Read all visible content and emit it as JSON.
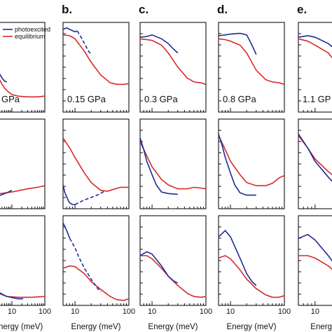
{
  "chart_data": {
    "type": "line",
    "x_scale": "log",
    "xlim": [
      6,
      100
    ],
    "grid": false,
    "legend": {
      "placement": "top-right of first panel",
      "entries": [
        {
          "label": "photoexcited",
          "color": "#1f2a9a"
        },
        {
          "label": "equilibrium",
          "color": "#d42a2a"
        }
      ]
    },
    "xlabel": "Energy (meV)",
    "x_ticks": [
      "10",
      "100"
    ],
    "colors": {
      "photoexcited": "#1f2a9a",
      "equilibrium": "#d42a2a"
    },
    "columns": [
      {
        "letter": "",
        "pressure": "GPa",
        "xlabel": "nergy (meV)"
      },
      {
        "letter": "b.",
        "pressure": "0.15 GPa",
        "xlabel": "Energy (meV)"
      },
      {
        "letter": "c.",
        "pressure": "0.3 GPa",
        "xlabel": "Energy (meV)"
      },
      {
        "letter": "d.",
        "pressure": "0.8 GPa",
        "xlabel": "Energy (meV)"
      },
      {
        "letter": "e.",
        "pressure": "1.1 GP",
        "xlabel": "Energy (me"
      }
    ],
    "panels": [
      {
        "col": 0,
        "row": 0,
        "xlim": [
          1,
          100
        ],
        "equilibrium": [
          [
            1,
            0.88
          ],
          [
            1.6,
            0.82
          ],
          [
            2.2,
            0.68
          ],
          [
            3,
            0.5
          ],
          [
            4,
            0.38
          ],
          [
            5,
            0.3
          ],
          [
            6,
            0.25
          ],
          [
            8,
            0.2
          ],
          [
            10,
            0.17
          ],
          [
            15,
            0.15
          ],
          [
            30,
            0.14
          ],
          [
            60,
            0.14
          ],
          [
            100,
            0.15
          ]
        ],
        "photoexcited": [
          [
            1,
            0.97
          ],
          [
            1.6,
            0.9
          ],
          [
            2.2,
            0.75
          ],
          [
            3,
            0.58
          ],
          [
            4,
            0.45
          ],
          [
            5,
            0.38
          ],
          [
            6,
            0.34
          ],
          [
            7,
            0.33
          ]
        ]
      },
      {
        "col": 0,
        "row": 1,
        "xlim": [
          1,
          100
        ],
        "equilibrium": [
          [
            1,
            0.1
          ],
          [
            3,
            0.13
          ],
          [
            10,
            0.16
          ],
          [
            30,
            0.2
          ],
          [
            60,
            0.22
          ],
          [
            100,
            0.24
          ]
        ],
        "photoexcited": [
          [
            1,
            0.0
          ],
          [
            2,
            0.05
          ],
          [
            4,
            0.11
          ],
          [
            7,
            0.15
          ],
          [
            10,
            0.18
          ]
        ]
      },
      {
        "col": 0,
        "row": 2,
        "xlim": [
          1,
          100
        ],
        "equilibrium": [
          [
            1,
            0.2
          ],
          [
            3,
            0.12
          ],
          [
            7,
            0.06
          ],
          [
            15,
            0.05
          ],
          [
            40,
            0.05
          ],
          [
            100,
            0.06
          ]
        ],
        "photoexcited": [
          [
            1,
            0.24
          ],
          [
            3,
            0.14
          ],
          [
            7,
            0.06
          ],
          [
            15,
            0.03
          ],
          [
            22,
            0.03
          ]
        ]
      },
      {
        "col": 1,
        "row": 0,
        "equilibrium": [
          [
            6,
            0.93
          ],
          [
            8,
            0.92
          ],
          [
            10,
            0.88
          ],
          [
            15,
            0.72
          ],
          [
            20,
            0.58
          ],
          [
            30,
            0.42
          ],
          [
            45,
            0.32
          ],
          [
            60,
            0.3
          ],
          [
            80,
            0.3
          ],
          [
            100,
            0.31
          ]
        ],
        "photoexcited": [
          [
            6,
            1.0
          ],
          [
            7,
            1.02
          ],
          [
            8,
            1.0
          ],
          [
            10,
            0.97
          ],
          [
            11,
            0.98
          ]
        ],
        "photoexcited_dashed": [
          [
            11,
            0.98
          ],
          [
            13,
            0.9
          ],
          [
            15,
            0.82
          ],
          [
            18,
            0.72
          ],
          [
            20,
            0.68
          ]
        ]
      },
      {
        "col": 1,
        "row": 1,
        "equilibrium": [
          [
            6,
            0.85
          ],
          [
            8,
            0.72
          ],
          [
            10,
            0.6
          ],
          [
            15,
            0.4
          ],
          [
            20,
            0.28
          ],
          [
            30,
            0.18
          ],
          [
            40,
            0.17
          ],
          [
            50,
            0.19
          ],
          [
            70,
            0.22
          ],
          [
            100,
            0.22
          ]
        ],
        "photoexcited": [
          [
            6,
            0.25
          ],
          [
            6.5,
            0.15
          ],
          [
            7,
            0.1
          ],
          [
            7.5,
            0.05
          ],
          [
            8,
            0.02
          ],
          [
            9,
            0.0
          ],
          [
            10,
            0.0
          ]
        ],
        "photoexcited_dashed": [
          [
            10,
            0.0
          ],
          [
            14,
            0.05
          ],
          [
            20,
            0.09
          ],
          [
            28,
            0.13
          ],
          [
            35,
            0.17
          ]
        ]
      },
      {
        "col": 1,
        "row": 2,
        "equilibrium": [
          [
            6,
            0.42
          ],
          [
            8,
            0.45
          ],
          [
            10,
            0.44
          ],
          [
            15,
            0.35
          ],
          [
            20,
            0.25
          ],
          [
            30,
            0.15
          ],
          [
            45,
            0.06
          ],
          [
            60,
            0.02
          ],
          [
            80,
            0.01
          ],
          [
            100,
            0.03
          ]
        ],
        "photoexcited": [
          [
            6,
            1.0
          ],
          [
            7,
            0.9
          ],
          [
            8,
            0.8
          ]
        ],
        "photoexcited_dashed": [
          [
            8,
            0.8
          ],
          [
            10,
            0.68
          ],
          [
            12,
            0.55
          ],
          [
            15,
            0.42
          ],
          [
            20,
            0.28
          ],
          [
            25,
            0.18
          ],
          [
            30,
            0.12
          ]
        ]
      },
      {
        "col": 2,
        "row": 0,
        "equilibrium": [
          [
            6,
            0.88
          ],
          [
            8,
            0.87
          ],
          [
            10,
            0.86
          ],
          [
            15,
            0.8
          ],
          [
            20,
            0.7
          ],
          [
            30,
            0.52
          ],
          [
            45,
            0.38
          ],
          [
            60,
            0.33
          ],
          [
            80,
            0.32
          ],
          [
            100,
            0.3
          ]
        ],
        "photoexcited": [
          [
            6,
            0.9
          ],
          [
            8,
            0.91
          ],
          [
            10,
            0.93
          ],
          [
            15,
            0.88
          ],
          [
            20,
            0.82
          ],
          [
            25,
            0.75
          ],
          [
            30,
            0.7
          ]
        ]
      },
      {
        "col": 2,
        "row": 1,
        "equilibrium": [
          [
            6,
            0.8
          ],
          [
            8,
            0.62
          ],
          [
            10,
            0.48
          ],
          [
            15,
            0.32
          ],
          [
            20,
            0.25
          ],
          [
            30,
            0.2
          ],
          [
            45,
            0.2
          ],
          [
            60,
            0.22
          ],
          [
            80,
            0.21
          ],
          [
            100,
            0.2
          ]
        ],
        "photoexcited": [
          [
            6,
            0.85
          ],
          [
            7,
            0.7
          ],
          [
            8,
            0.55
          ],
          [
            10,
            0.38
          ],
          [
            12,
            0.25
          ],
          [
            15,
            0.16
          ],
          [
            20,
            0.14
          ],
          [
            30,
            0.13
          ]
        ]
      },
      {
        "col": 2,
        "row": 2,
        "equilibrium": [
          [
            6,
            0.58
          ],
          [
            8,
            0.58
          ],
          [
            10,
            0.54
          ],
          [
            15,
            0.42
          ],
          [
            20,
            0.32
          ],
          [
            30,
            0.2
          ],
          [
            45,
            0.1
          ],
          [
            60,
            0.06
          ],
          [
            80,
            0.05
          ],
          [
            100,
            0.06
          ]
        ],
        "photoexcited": [
          [
            6,
            0.58
          ],
          [
            8,
            0.63
          ],
          [
            10,
            0.6
          ],
          [
            15,
            0.45
          ],
          [
            20,
            0.32
          ],
          [
            25,
            0.26
          ],
          [
            30,
            0.23
          ]
        ]
      },
      {
        "col": 3,
        "row": 0,
        "equilibrium": [
          [
            6,
            0.88
          ],
          [
            8,
            0.87
          ],
          [
            10,
            0.85
          ],
          [
            15,
            0.8
          ],
          [
            20,
            0.7
          ],
          [
            30,
            0.48
          ],
          [
            45,
            0.36
          ],
          [
            60,
            0.33
          ],
          [
            80,
            0.32
          ],
          [
            100,
            0.3
          ]
        ],
        "photoexcited": [
          [
            6,
            0.92
          ],
          [
            8,
            0.93
          ],
          [
            10,
            0.94
          ],
          [
            15,
            0.95
          ],
          [
            20,
            0.93
          ],
          [
            25,
            0.8
          ],
          [
            30,
            0.68
          ]
        ]
      },
      {
        "col": 3,
        "row": 1,
        "equilibrium": [
          [
            6,
            0.88
          ],
          [
            8,
            0.7
          ],
          [
            10,
            0.55
          ],
          [
            15,
            0.38
          ],
          [
            20,
            0.28
          ],
          [
            30,
            0.24
          ],
          [
            45,
            0.24
          ],
          [
            60,
            0.27
          ],
          [
            80,
            0.34
          ],
          [
            100,
            0.37
          ]
        ],
        "photoexcited": [
          [
            6,
            0.9
          ],
          [
            7,
            0.75
          ],
          [
            8,
            0.6
          ],
          [
            10,
            0.4
          ],
          [
            12,
            0.25
          ],
          [
            15,
            0.15
          ],
          [
            20,
            0.12
          ],
          [
            30,
            0.12
          ]
        ]
      },
      {
        "col": 3,
        "row": 2,
        "equilibrium": [
          [
            6,
            0.55
          ],
          [
            8,
            0.58
          ],
          [
            10,
            0.54
          ],
          [
            15,
            0.4
          ],
          [
            20,
            0.28
          ],
          [
            30,
            0.16
          ],
          [
            45,
            0.08
          ],
          [
            60,
            0.05
          ],
          [
            80,
            0.05
          ],
          [
            100,
            0.07
          ]
        ],
        "photoexcited": [
          [
            6,
            0.82
          ],
          [
            8,
            0.9
          ],
          [
            10,
            0.82
          ],
          [
            15,
            0.55
          ],
          [
            20,
            0.35
          ],
          [
            25,
            0.25
          ],
          [
            30,
            0.2
          ]
        ]
      },
      {
        "col": 4,
        "row": 0,
        "xlim": [
          6,
          45
        ],
        "equilibrium": [
          [
            6,
            0.88
          ],
          [
            8,
            0.85
          ],
          [
            10,
            0.8
          ],
          [
            15,
            0.7
          ],
          [
            20,
            0.55
          ],
          [
            30,
            0.42
          ],
          [
            45,
            0.35
          ]
        ],
        "photoexcited": [
          [
            6,
            0.9
          ],
          [
            8,
            0.92
          ],
          [
            10,
            0.9
          ],
          [
            15,
            0.82
          ],
          [
            20,
            0.72
          ],
          [
            30,
            0.6
          ],
          [
            45,
            0.5
          ]
        ]
      },
      {
        "col": 4,
        "row": 1,
        "xlim": [
          6,
          45
        ],
        "equilibrium": [
          [
            6,
            0.88
          ],
          [
            8,
            0.72
          ],
          [
            10,
            0.58
          ],
          [
            15,
            0.42
          ],
          [
            20,
            0.32
          ],
          [
            30,
            0.26
          ],
          [
            45,
            0.24
          ]
        ],
        "photoexcited": [
          [
            6,
            0.9
          ],
          [
            8,
            0.72
          ],
          [
            10,
            0.55
          ],
          [
            15,
            0.35
          ],
          [
            20,
            0.22
          ],
          [
            30,
            0.14
          ],
          [
            45,
            0.12
          ]
        ]
      },
      {
        "col": 4,
        "row": 2,
        "xlim": [
          6,
          45
        ],
        "equilibrium": [
          [
            6,
            0.58
          ],
          [
            8,
            0.58
          ],
          [
            10,
            0.55
          ],
          [
            15,
            0.45
          ],
          [
            20,
            0.34
          ],
          [
            30,
            0.22
          ],
          [
            45,
            0.14
          ]
        ],
        "photoexcited": [
          [
            6,
            0.8
          ],
          [
            8,
            0.85
          ],
          [
            10,
            0.78
          ],
          [
            15,
            0.58
          ],
          [
            20,
            0.42
          ],
          [
            30,
            0.28
          ],
          [
            45,
            0.2
          ]
        ]
      }
    ]
  }
}
